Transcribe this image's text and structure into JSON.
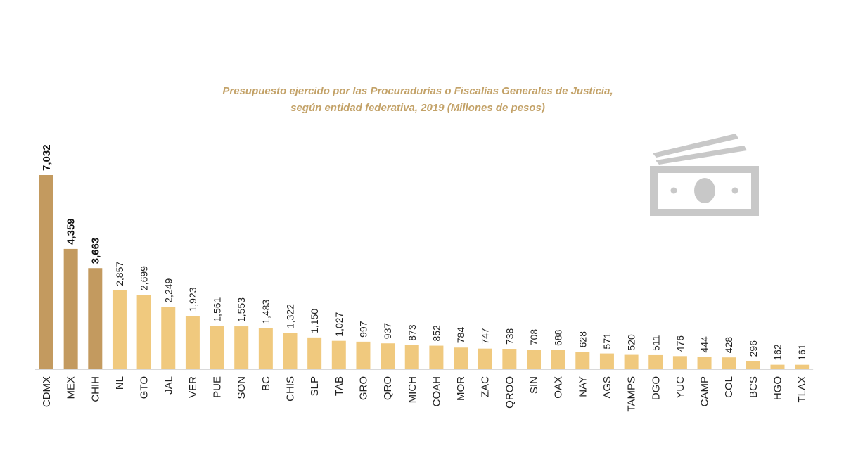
{
  "chart_data": {
    "type": "bar",
    "title_line1": "Presupuesto ejercido por las Procuradurías o Fiscalías Generales de Justicia,",
    "title_line2": "según entidad federativa, 2019 (Millones de pesos)",
    "xlabel": "",
    "ylabel": "",
    "ylim": [
      0,
      7032
    ],
    "grid": false,
    "legend": "none",
    "categories": [
      "CDMX",
      "MEX",
      "CHIH",
      "NL",
      "GTO",
      "JAL",
      "VER",
      "PUE",
      "SON",
      "BC",
      "CHIS",
      "SLP",
      "TAB",
      "GRO",
      "QRO",
      "MICH",
      "COAH",
      "MOR",
      "ZAC",
      "QROO",
      "SIN",
      "OAX",
      "NAY",
      "AGS",
      "TAMPS",
      "DGO",
      "YUC",
      "CAMP",
      "COL",
      "BCS",
      "HGO",
      "TLAX"
    ],
    "values": [
      7032,
      4359,
      3663,
      2857,
      2699,
      2249,
      1923,
      1561,
      1553,
      1483,
      1322,
      1150,
      1027,
      997,
      937,
      873,
      852,
      784,
      747,
      738,
      708,
      688,
      628,
      571,
      520,
      511,
      476,
      444,
      428,
      296,
      162,
      161
    ],
    "value_labels": [
      "7,032",
      "4,359",
      "3,663",
      "2,857",
      "2,699",
      "2,249",
      "1,923",
      "1,561",
      "1,553",
      "1,483",
      "1,322",
      "1,150",
      "1,027",
      "997",
      "937",
      "873",
      "852",
      "784",
      "747",
      "738",
      "708",
      "688",
      "628",
      "571",
      "520",
      "511",
      "476",
      "444",
      "428",
      "296",
      "162",
      "161"
    ],
    "highlight_count": 3,
    "colors": {
      "highlight": "#c39a5f",
      "normal": "#f0c97e",
      "title": "#c3a268",
      "icon": "#c8c8c8",
      "axis": "#d9d9d9"
    },
    "icon": "money-bill-icon"
  }
}
